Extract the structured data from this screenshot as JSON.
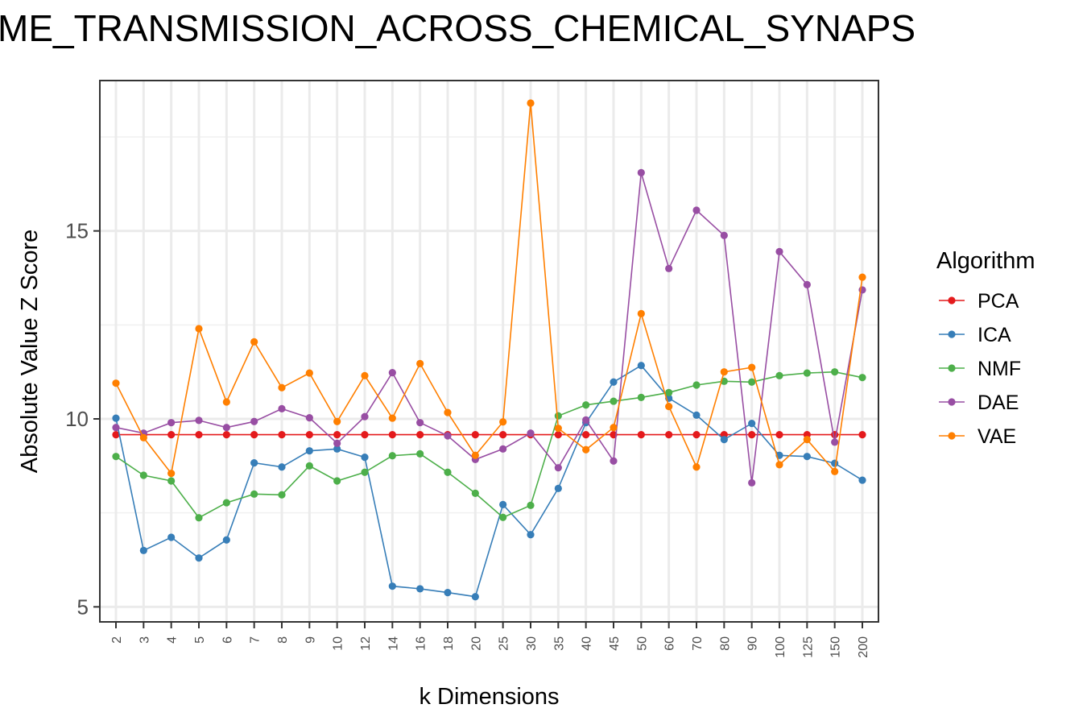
{
  "chart_data": {
    "type": "line",
    "title": "ME_TRANSMISSION_ACROSS_CHEMICAL_SYNAPS",
    "xlabel": "k Dimensions",
    "ylabel": "Absolute Value Z Score",
    "categories": [
      "2",
      "3",
      "4",
      "5",
      "6",
      "7",
      "8",
      "9",
      "10",
      "12",
      "14",
      "16",
      "18",
      "20",
      "25",
      "30",
      "35",
      "40",
      "45",
      "50",
      "60",
      "70",
      "80",
      "90",
      "100",
      "125",
      "150",
      "200"
    ],
    "ylim": [
      4.6,
      19.0
    ],
    "yticks": [
      5,
      10,
      15
    ],
    "grid": true,
    "legend": {
      "title": "Algorithm",
      "position": "right"
    },
    "series": [
      {
        "name": "PCA",
        "color": "#E41A1C",
        "values": [
          9.58,
          9.58,
          9.58,
          9.58,
          9.58,
          9.58,
          9.58,
          9.58,
          9.58,
          9.58,
          9.58,
          9.58,
          9.58,
          9.58,
          9.58,
          9.58,
          9.58,
          9.58,
          9.58,
          9.58,
          9.58,
          9.58,
          9.58,
          9.58,
          9.58,
          9.58,
          9.58,
          9.58
        ]
      },
      {
        "name": "ICA",
        "color": "#377EB8",
        "values": [
          10.02,
          6.5,
          6.85,
          6.3,
          6.78,
          8.83,
          8.72,
          9.15,
          9.2,
          8.98,
          5.55,
          5.48,
          5.38,
          5.27,
          7.72,
          6.92,
          8.15,
          9.9,
          10.98,
          11.42,
          10.55,
          10.1,
          9.45,
          9.88,
          9.03,
          9.0,
          8.82,
          8.37
        ]
      },
      {
        "name": "NMF",
        "color": "#4DAF4A",
        "values": [
          9.0,
          8.5,
          8.35,
          7.37,
          7.77,
          8.0,
          7.98,
          8.75,
          8.35,
          8.58,
          9.02,
          9.07,
          8.58,
          8.02,
          7.38,
          7.7,
          10.08,
          10.37,
          10.47,
          10.57,
          10.7,
          10.9,
          11.0,
          10.98,
          11.15,
          11.22,
          11.25,
          11.1
        ]
      },
      {
        "name": "DAE",
        "color": "#984EA3",
        "values": [
          9.77,
          9.62,
          9.9,
          9.96,
          9.77,
          9.93,
          10.27,
          10.03,
          9.35,
          10.06,
          11.23,
          9.9,
          9.55,
          8.92,
          9.2,
          9.62,
          8.7,
          9.97,
          8.88,
          16.55,
          14.0,
          15.55,
          14.88,
          8.3,
          14.45,
          13.57,
          9.38,
          13.43
        ]
      },
      {
        "name": "VAE",
        "color": "#FF7F00",
        "values": [
          10.95,
          9.5,
          8.55,
          12.4,
          10.45,
          12.05,
          10.83,
          11.22,
          9.93,
          11.15,
          10.02,
          11.47,
          10.17,
          9.03,
          9.92,
          18.4,
          9.75,
          9.18,
          9.77,
          12.8,
          10.33,
          8.72,
          11.25,
          11.37,
          8.78,
          9.45,
          8.6,
          13.77
        ]
      }
    ]
  }
}
